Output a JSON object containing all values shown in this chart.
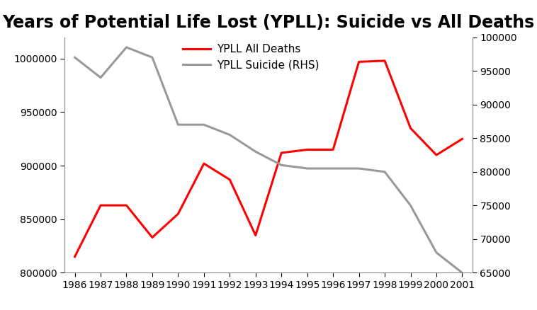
{
  "title": "Years of Potential Life Lost (YPLL): Suicide vs All Deaths",
  "years": [
    1986,
    1987,
    1988,
    1989,
    1990,
    1991,
    1992,
    1993,
    1994,
    1995,
    1996,
    1997,
    1998,
    1999,
    2000,
    2001
  ],
  "ypll_all_deaths": [
    815000,
    863000,
    863000,
    833000,
    855000,
    902000,
    887000,
    835000,
    912000,
    915000,
    915000,
    997000,
    998000,
    935000,
    910000,
    925000
  ],
  "ypll_suicide": [
    97000,
    94000,
    98500,
    97000,
    87000,
    87000,
    85500,
    83000,
    81000,
    80500,
    80500,
    80500,
    80000,
    75000,
    68000,
    65000
  ],
  "left_ylim": [
    800000,
    1020000
  ],
  "right_ylim": [
    65000,
    100000
  ],
  "left_yticks": [
    800000,
    850000,
    900000,
    950000,
    1000000
  ],
  "right_yticks": [
    65000,
    70000,
    75000,
    80000,
    85000,
    90000,
    95000,
    100000
  ],
  "line_all_deaths_color": "#FF0000",
  "line_suicide_color": "#999999",
  "line_width": 2.2,
  "legend_labels": [
    "YPLL All Deaths",
    "YPLL Suicide (RHS)"
  ],
  "title_fontsize": 17,
  "tick_fontsize": 10,
  "legend_fontsize": 11,
  "background_color": "#ffffff"
}
